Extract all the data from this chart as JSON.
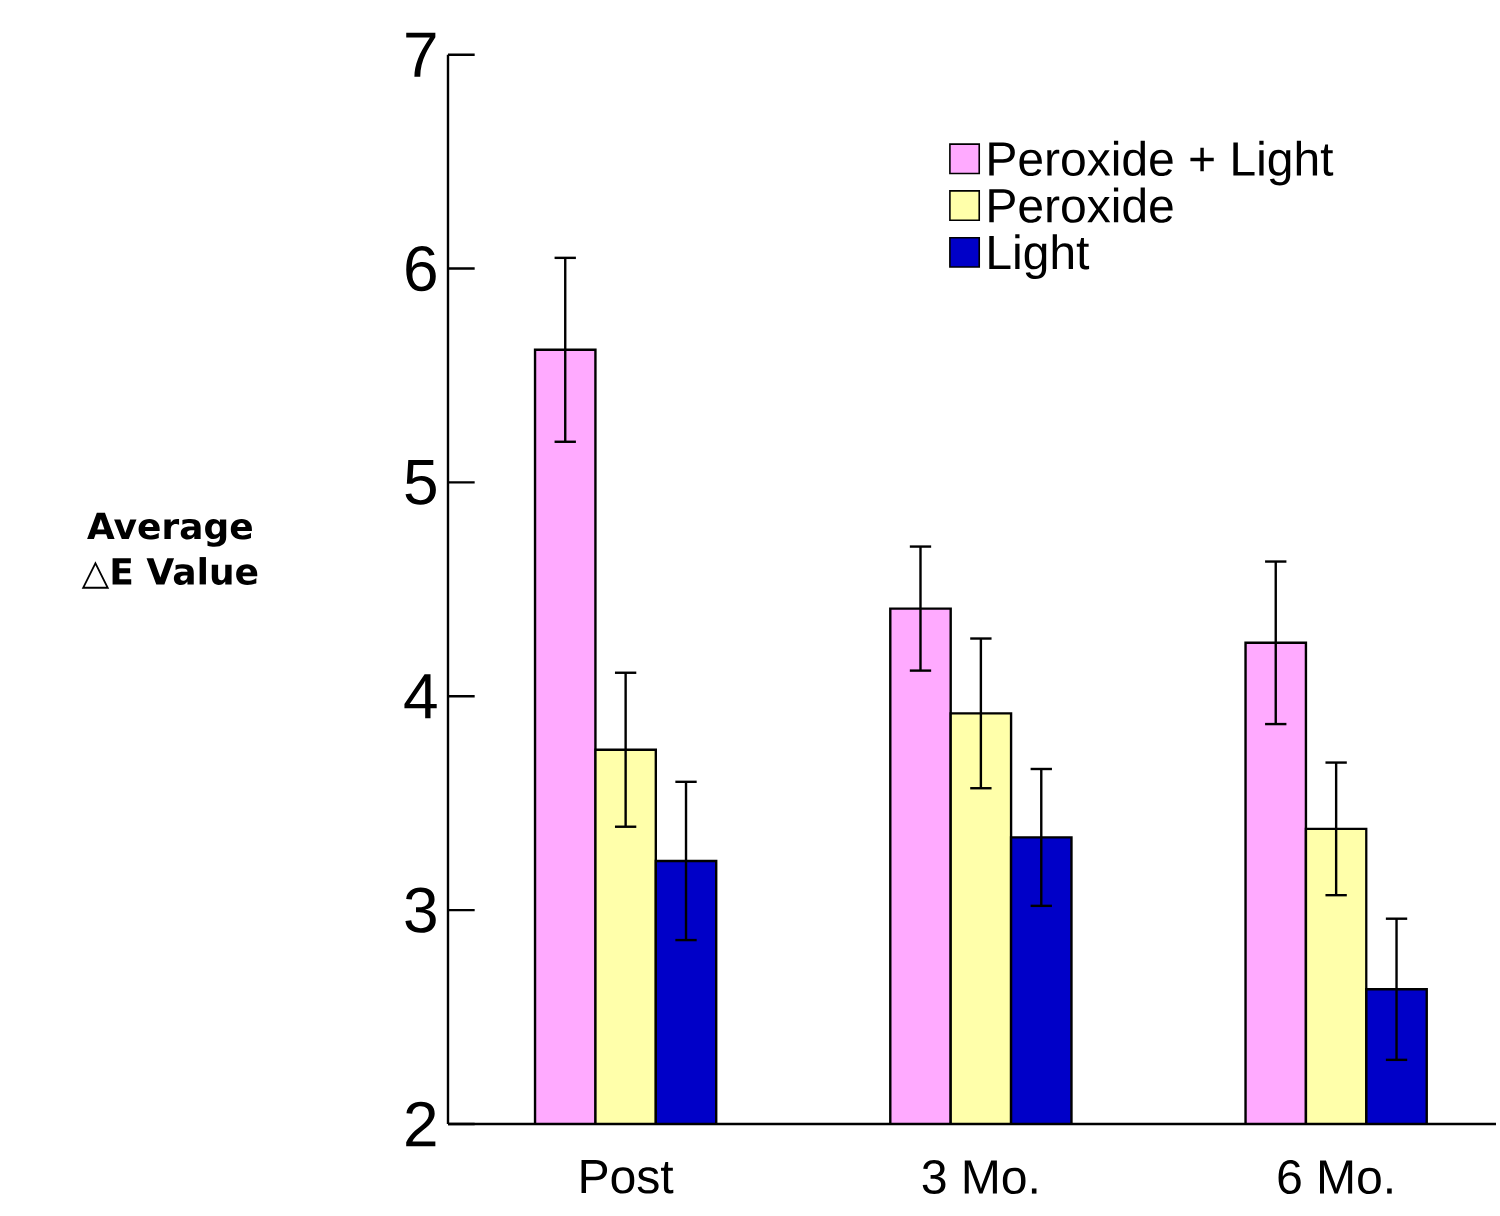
{
  "chart_data": {
    "type": "bar",
    "ylabel": "Average △E Value",
    "categories": [
      "Post",
      "3 Mo.",
      "6 Mo."
    ],
    "series": [
      {
        "name": "Peroxide + Light",
        "color": "#ffaaff",
        "values": [
          5.62,
          4.41,
          4.25
        ],
        "errors": [
          0.43,
          0.29,
          0.38
        ]
      },
      {
        "name": "Peroxide",
        "color": "#ffffaa",
        "values": [
          3.75,
          3.92,
          3.38
        ],
        "errors": [
          0.36,
          0.35,
          0.31
        ]
      },
      {
        "name": "Light",
        "color": "#0000c8",
        "values": [
          3.23,
          3.34,
          2.63
        ],
        "errors": [
          0.37,
          0.32,
          0.33
        ]
      }
    ],
    "ylim": [
      2,
      7
    ],
    "yticks": [
      2,
      3,
      4,
      5,
      6,
      7
    ],
    "grid": false,
    "legend": "top right"
  }
}
